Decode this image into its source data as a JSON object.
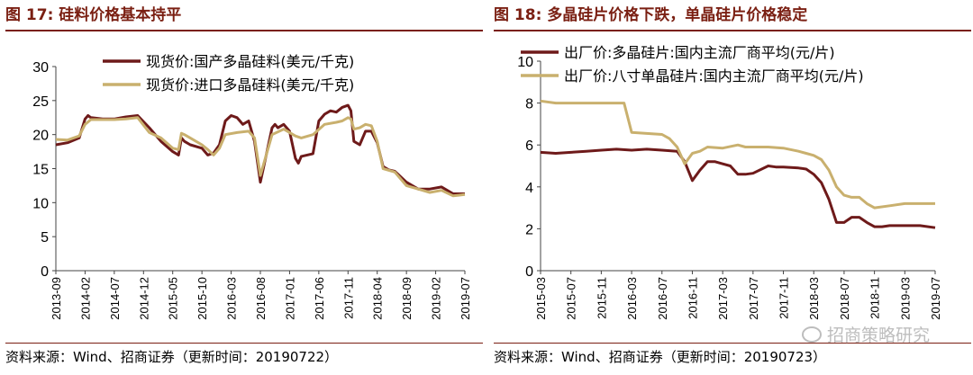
{
  "watermark": "招商策略研究",
  "chart_data": [
    {
      "type": "line",
      "title": "图 17:  硅料价格基本持平",
      "source": "资料来源：Wind、招商证券（更新时间：20190722）",
      "ylim": [
        0,
        30
      ],
      "yticks": [
        0,
        5,
        10,
        15,
        20,
        25,
        30
      ],
      "xlim": [
        0,
        70
      ],
      "xticks": [
        "2013-09",
        "2014-02",
        "2014-07",
        "2014-12",
        "2015-05",
        "2015-10",
        "2016-03",
        "2016-08",
        "2017-01",
        "2017-06",
        "2017-11",
        "2018-04",
        "2018-09",
        "2019-02",
        "2019-07"
      ],
      "legend_position": "top-right",
      "series": [
        {
          "name": "现货价:国产多晶硅料(美元/千克)",
          "color": "#6e1a1a",
          "x": [
            0,
            2,
            4,
            5,
            5.5,
            6,
            8,
            10,
            12,
            14,
            16,
            18,
            20,
            21,
            21.5,
            22,
            23,
            25,
            26,
            27,
            28,
            29,
            30,
            31,
            31.5,
            32,
            33,
            34,
            35,
            36,
            37,
            37.5,
            38,
            39,
            40,
            41,
            41.5,
            42,
            44,
            45,
            46,
            47,
            48,
            49,
            50,
            50.5,
            51,
            52,
            53,
            54,
            55,
            56,
            57,
            58,
            60,
            62,
            64,
            66,
            68,
            70
          ],
          "values": [
            18.5,
            18.8,
            19.5,
            22.3,
            22.8,
            22.5,
            22.3,
            22.3,
            22.6,
            22.8,
            21.0,
            19.0,
            17.5,
            17.0,
            19.5,
            19.0,
            18.5,
            18.0,
            17.0,
            17.3,
            18.5,
            22.0,
            22.8,
            22.5,
            22.0,
            21.5,
            22.0,
            19.0,
            13.0,
            17.0,
            21.0,
            21.5,
            21.0,
            21.5,
            20.5,
            16.5,
            15.8,
            16.8,
            17.2,
            22.0,
            23.0,
            23.5,
            23.3,
            24.0,
            24.3,
            23.5,
            19.0,
            18.5,
            20.5,
            20.5,
            18.8,
            15.3,
            14.8,
            14.6,
            13.0,
            12.0,
            12.0,
            12.3,
            11.3,
            11.3
          ]
        },
        {
          "name": "现货价:进口多晶硅料(美元/千克)",
          "color": "#c9b06e",
          "x": [
            0,
            2,
            4,
            5,
            6,
            8,
            10,
            12,
            14,
            16,
            18,
            20,
            21,
            21.5,
            22,
            23,
            25,
            26,
            27,
            28,
            29,
            31,
            33,
            34,
            35,
            36,
            37,
            39,
            41,
            42,
            44,
            46,
            48,
            49,
            50,
            50.5,
            51,
            52,
            53,
            54,
            55,
            56,
            58,
            60,
            62,
            64,
            66,
            68,
            70
          ],
          "values": [
            19.3,
            19.2,
            19.8,
            21.5,
            22.2,
            22.2,
            22.2,
            22.3,
            22.5,
            20.3,
            19.5,
            18.0,
            17.8,
            20.2,
            20.0,
            19.5,
            18.5,
            17.8,
            17.0,
            18.0,
            20.0,
            20.3,
            20.5,
            19.5,
            14.0,
            17.0,
            20.0,
            20.8,
            19.8,
            19.5,
            20.0,
            21.5,
            21.8,
            22.0,
            22.5,
            22.3,
            20.8,
            21.0,
            21.5,
            21.3,
            19.0,
            15.0,
            14.5,
            12.5,
            12.0,
            11.5,
            11.8,
            11.0,
            11.2
          ]
        }
      ]
    },
    {
      "type": "line",
      "title": "图 18:  多晶硅片价格下跌，单晶硅片价格稳定",
      "source": "资料来源：Wind、招商证券（更新时间：20190723）",
      "ylim": [
        0,
        10
      ],
      "yticks": [
        0,
        2,
        4,
        6,
        8,
        10
      ],
      "xlim": [
        0,
        52
      ],
      "xticks": [
        "2015-03",
        "2015-07",
        "2015-11",
        "2016-03",
        "2016-07",
        "2016-11",
        "2017-03",
        "2017-07",
        "2017-11",
        "2018-03",
        "2018-07",
        "2018-11",
        "2019-03",
        "2019-07"
      ],
      "legend_position": "top-right",
      "series": [
        {
          "name": "出厂价:多晶硅片:国内主流厂商平均(元/片)",
          "color": "#6e1a1a",
          "x": [
            0,
            2,
            4,
            6,
            8,
            10,
            12,
            14,
            16,
            18,
            19,
            20,
            21,
            22,
            23,
            24,
            25,
            26,
            27,
            28,
            30,
            31,
            32,
            34,
            35,
            36,
            37,
            38,
            39,
            40,
            41,
            42,
            43,
            44,
            45,
            46,
            48,
            50,
            52
          ],
          "values": [
            5.65,
            5.6,
            5.65,
            5.7,
            5.75,
            5.8,
            5.75,
            5.8,
            5.75,
            5.7,
            5.2,
            4.3,
            4.8,
            5.2,
            5.2,
            5.1,
            5.0,
            4.6,
            4.6,
            4.65,
            5.0,
            4.95,
            4.95,
            4.9,
            4.85,
            4.6,
            4.2,
            3.4,
            2.3,
            2.3,
            2.55,
            2.55,
            2.3,
            2.1,
            2.1,
            2.15,
            2.15,
            2.15,
            2.05
          ]
        },
        {
          "name": "出厂价:八寸单晶硅片:国内主流厂商平均(元/片)",
          "color": "#c9b06e",
          "x": [
            0,
            2,
            4,
            6,
            8,
            10,
            11,
            12,
            14,
            16,
            17,
            18,
            19,
            20,
            21,
            22,
            24,
            26,
            27,
            28,
            30,
            32,
            34,
            35,
            36,
            37,
            38,
            39,
            40,
            41,
            42,
            43,
            44,
            46,
            48,
            50,
            52
          ],
          "values": [
            8.1,
            8.0,
            8.0,
            8.0,
            8.0,
            8.0,
            8.0,
            6.6,
            6.55,
            6.5,
            6.3,
            5.9,
            5.1,
            5.6,
            5.7,
            5.9,
            5.85,
            6.0,
            5.9,
            5.9,
            5.9,
            5.85,
            5.7,
            5.6,
            5.5,
            5.3,
            4.8,
            4.0,
            3.6,
            3.5,
            3.5,
            3.2,
            3.0,
            3.1,
            3.2,
            3.2,
            3.2
          ]
        }
      ]
    }
  ]
}
